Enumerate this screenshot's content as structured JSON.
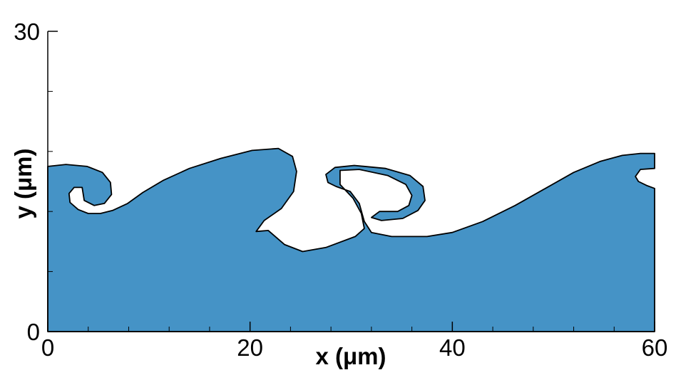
{
  "chart_data": {
    "type": "area",
    "title": "",
    "xlabel": "x (μm)",
    "ylabel": "y (μm)",
    "xlim": [
      0,
      60
    ],
    "ylim": [
      0,
      30
    ],
    "x_ticks": [
      "0",
      "20",
      "40",
      "60"
    ],
    "y_ticks": [
      "0",
      "30"
    ],
    "x_minor_ticks": [
      4,
      8,
      12,
      16,
      24,
      28,
      32,
      36,
      44,
      48,
      52,
      56
    ],
    "y_major_ticks": [
      0,
      30
    ],
    "y_minor_ticks": [
      6,
      12,
      18,
      24
    ],
    "grid": false,
    "legend": "none",
    "colors": {
      "fill": "#4593c6",
      "edge": "#000000",
      "axis": "#000000"
    },
    "interface": [
      [
        60.0,
        14.3
      ],
      [
        59.2,
        14.6
      ],
      [
        58.4,
        15.0
      ],
      [
        58.1,
        15.5
      ],
      [
        58.6,
        16.2
      ],
      [
        60.0,
        16.3
      ],
      [
        60.0,
        17.8
      ],
      [
        58.6,
        17.8
      ],
      [
        56.8,
        17.6
      ],
      [
        54.6,
        17.0
      ],
      [
        52.0,
        15.9
      ],
      [
        49.2,
        14.3
      ],
      [
        46.2,
        12.6
      ],
      [
        43.0,
        11.0
      ],
      [
        40.0,
        9.9
      ],
      [
        37.5,
        9.5
      ],
      [
        34.0,
        9.5
      ],
      [
        32.0,
        9.9
      ],
      [
        31.3,
        11.0
      ],
      [
        30.8,
        12.8
      ],
      [
        29.9,
        14.0
      ],
      [
        28.5,
        14.5
      ],
      [
        27.7,
        14.9
      ],
      [
        27.5,
        15.7
      ],
      [
        28.4,
        16.4
      ],
      [
        30.3,
        16.6
      ],
      [
        33.4,
        16.3
      ],
      [
        35.8,
        15.6
      ],
      [
        37.1,
        14.5
      ],
      [
        37.3,
        13.1
      ],
      [
        36.6,
        12.1
      ],
      [
        35.1,
        11.3
      ],
      [
        33.0,
        11.1
      ],
      [
        32.0,
        11.4
      ],
      [
        32.8,
        12.0
      ],
      [
        34.6,
        12.0
      ],
      [
        35.7,
        12.6
      ],
      [
        36.0,
        13.6
      ],
      [
        35.4,
        14.7
      ],
      [
        33.6,
        15.6
      ],
      [
        30.8,
        16.2
      ],
      [
        28.9,
        16.1
      ],
      [
        28.9,
        14.7
      ],
      [
        30.2,
        13.3
      ],
      [
        31.0,
        11.8
      ],
      [
        31.3,
        10.3
      ],
      [
        30.4,
        9.5
      ],
      [
        27.5,
        8.4
      ],
      [
        25.2,
        8.0
      ],
      [
        23.4,
        8.7
      ],
      [
        21.8,
        10.1
      ],
      [
        20.6,
        10.0
      ],
      [
        21.4,
        11.1
      ],
      [
        23.1,
        12.3
      ],
      [
        24.3,
        14.0
      ],
      [
        24.6,
        16.0
      ],
      [
        24.2,
        17.5
      ],
      [
        22.8,
        18.3
      ],
      [
        20.2,
        18.1
      ],
      [
        17.1,
        17.3
      ],
      [
        14.0,
        16.3
      ],
      [
        11.4,
        15.1
      ],
      [
        9.4,
        13.9
      ],
      [
        7.9,
        12.8
      ],
      [
        6.4,
        12.1
      ],
      [
        5.2,
        11.8
      ],
      [
        4.0,
        11.8
      ],
      [
        3.0,
        12.2
      ],
      [
        2.2,
        12.9
      ],
      [
        2.1,
        13.8
      ],
      [
        2.6,
        14.4
      ],
      [
        3.4,
        14.4
      ],
      [
        3.6,
        13.1
      ],
      [
        4.6,
        12.6
      ],
      [
        5.6,
        12.8
      ],
      [
        6.3,
        13.7
      ],
      [
        6.2,
        14.9
      ],
      [
        5.4,
        15.9
      ],
      [
        3.9,
        16.5
      ],
      [
        1.8,
        16.7
      ],
      [
        0.0,
        16.5
      ],
      [
        0.0,
        0.0
      ],
      [
        60.0,
        0.0
      ]
    ]
  }
}
